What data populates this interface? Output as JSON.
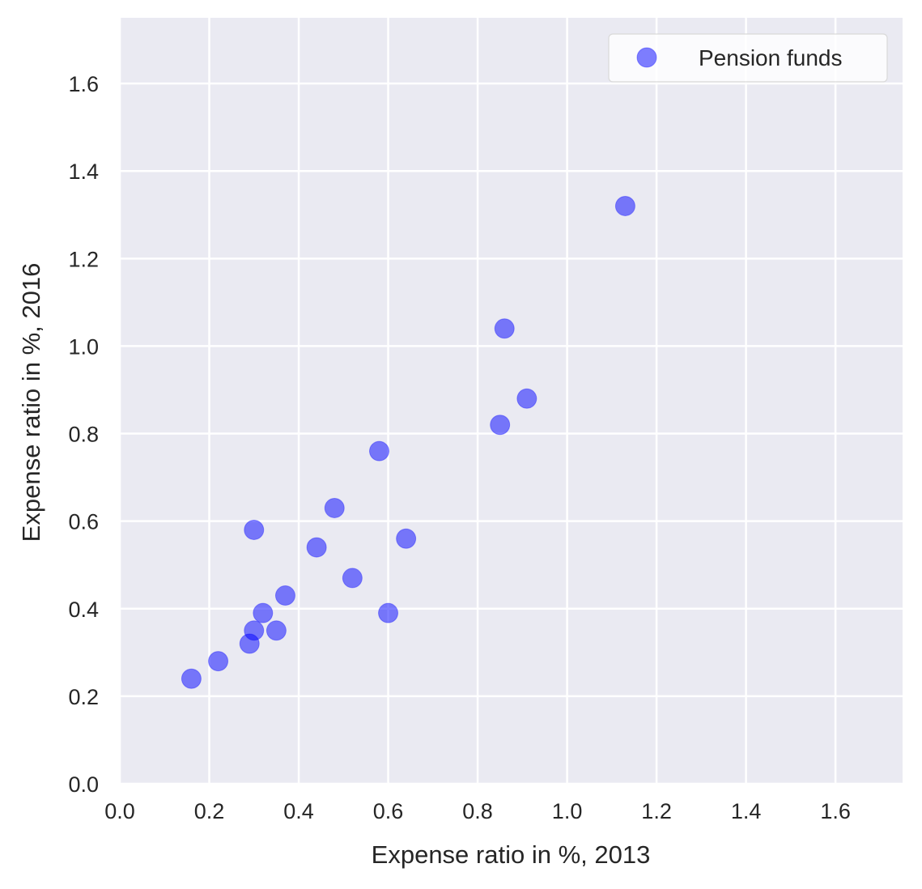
{
  "chart_data": {
    "type": "scatter",
    "title": "",
    "xlabel": "Expense ratio in %, 2013",
    "ylabel": "Expense ratio in %, 2016",
    "xlim": [
      0.0,
      1.75
    ],
    "ylim": [
      0.0,
      1.75
    ],
    "xticks": [
      "0.0",
      "0.2",
      "0.4",
      "0.6",
      "0.8",
      "1.0",
      "1.2",
      "1.4",
      "1.6"
    ],
    "yticks": [
      "0.0",
      "0.2",
      "0.4",
      "0.6",
      "0.8",
      "1.0",
      "1.2",
      "1.4",
      "1.6"
    ],
    "grid": true,
    "legend_position": "top-right",
    "series": [
      {
        "name": "Pension funds",
        "color": "#0000ff",
        "opacity": 0.5,
        "points": [
          {
            "x": 0.16,
            "y": 0.24
          },
          {
            "x": 0.22,
            "y": 0.28
          },
          {
            "x": 0.29,
            "y": 0.32
          },
          {
            "x": 0.3,
            "y": 0.35
          },
          {
            "x": 0.32,
            "y": 0.39
          },
          {
            "x": 0.35,
            "y": 0.35
          },
          {
            "x": 0.37,
            "y": 0.43
          },
          {
            "x": 0.3,
            "y": 0.58
          },
          {
            "x": 0.44,
            "y": 0.54
          },
          {
            "x": 0.48,
            "y": 0.63
          },
          {
            "x": 0.52,
            "y": 0.47
          },
          {
            "x": 0.58,
            "y": 0.76
          },
          {
            "x": 0.6,
            "y": 0.39
          },
          {
            "x": 0.64,
            "y": 0.56
          },
          {
            "x": 0.85,
            "y": 0.82
          },
          {
            "x": 0.86,
            "y": 1.04
          },
          {
            "x": 0.91,
            "y": 0.88
          },
          {
            "x": 1.13,
            "y": 1.32
          }
        ]
      }
    ]
  },
  "colors": {
    "plot_background": "#eaeaf2",
    "grid": "#ffffff",
    "text": "#262626"
  }
}
